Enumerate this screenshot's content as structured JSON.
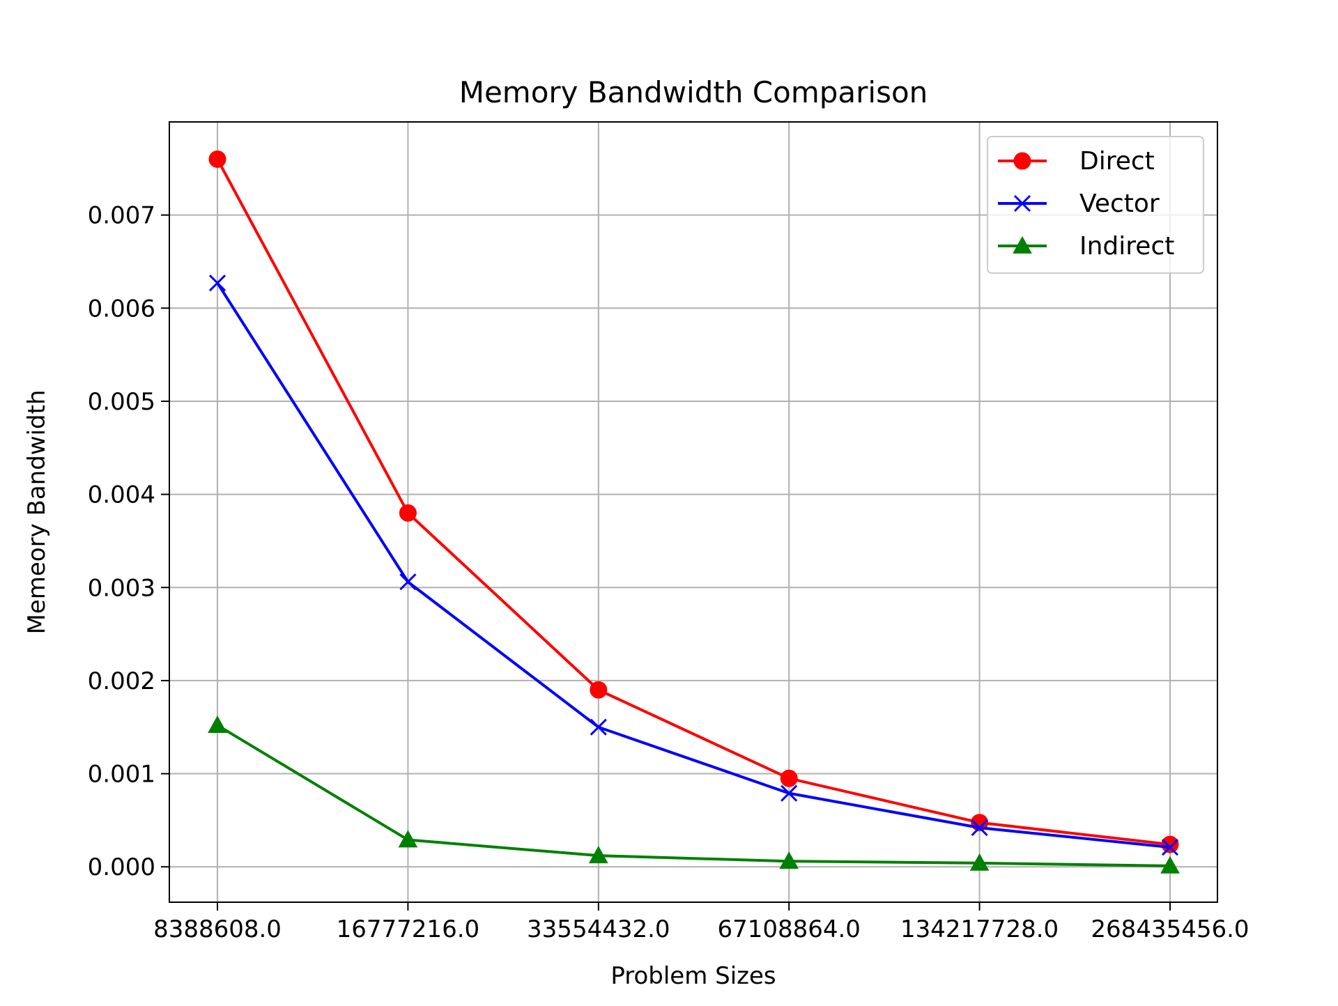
{
  "chart_data": {
    "type": "line",
    "title": "Memory Bandwidth Comparison",
    "xlabel": "Problem Sizes",
    "ylabel": "Memeory Bandwidth",
    "categories": [
      "8388608.0",
      "16777216.0",
      "33554432.0",
      "67108864.0",
      "134217728.0",
      "268435456.0"
    ],
    "series": [
      {
        "name": "Direct",
        "color": "#ff0000",
        "marker": "circle",
        "values": [
          0.0076,
          0.0038,
          0.0019,
          0.00095,
          0.000475,
          0.00024
        ]
      },
      {
        "name": "Vector",
        "color": "#0000ff",
        "marker": "x",
        "values": [
          0.00627,
          0.00306,
          0.0015,
          0.00079,
          0.00042,
          0.00021
        ]
      },
      {
        "name": "Indirect",
        "color": "#008000",
        "marker": "triangle",
        "values": [
          0.00152,
          0.00029,
          0.00012,
          6e-05,
          4e-05,
          1e-05
        ]
      }
    ],
    "ylim": [
      -0.00038,
      0.008
    ],
    "yticks": [
      "0.000",
      "0.001",
      "0.002",
      "0.003",
      "0.004",
      "0.005",
      "0.006",
      "0.007"
    ],
    "grid": true,
    "legend_position": "upper right"
  }
}
